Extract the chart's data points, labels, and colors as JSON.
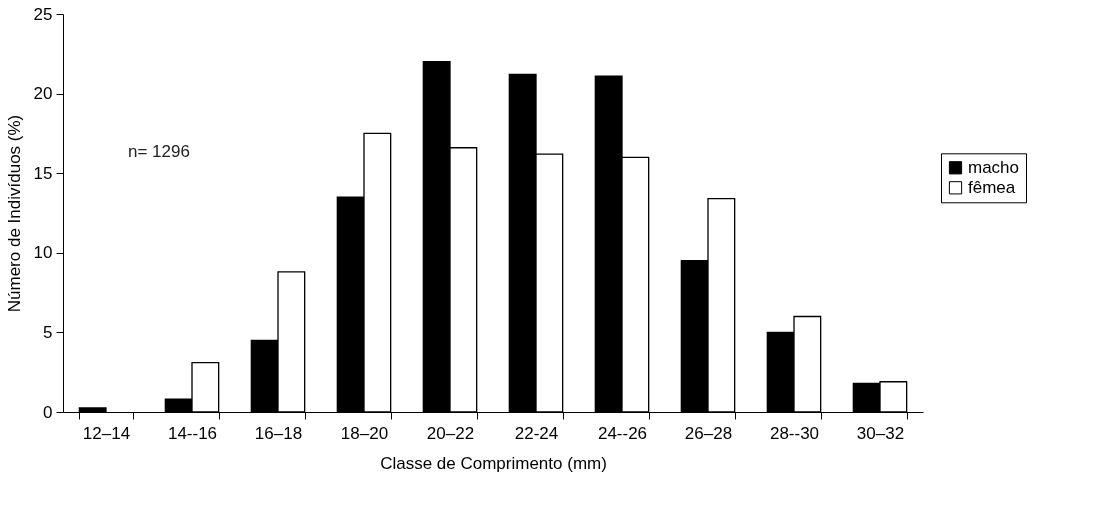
{
  "chart_data": {
    "type": "bar",
    "xlabel": "Classe de Comprimento (mm)",
    "ylabel": "Número de Indivíduos (%)",
    "categories": [
      "12–14",
      "14--16",
      "16–18",
      "18–20",
      "20–22",
      "22-24",
      "24--26",
      "26–28",
      "28--30",
      "30–32"
    ],
    "series": [
      {
        "name": "macho",
        "color": "#000000",
        "values": [
          0.25,
          0.8,
          4.5,
          13.5,
          22.0,
          21.2,
          21.1,
          9.5,
          5.0,
          1.8
        ]
      },
      {
        "name": "fêmea",
        "color": "#ffffff",
        "values": [
          null,
          3.1,
          8.8,
          17.5,
          16.6,
          16.2,
          16.0,
          13.4,
          6.0,
          1.9
        ]
      }
    ],
    "ylim": [
      0,
      25
    ],
    "yticks": [
      0,
      5,
      10,
      15,
      20,
      25
    ],
    "grid": false,
    "legend": "right",
    "annotations": [
      "n= 1296"
    ]
  }
}
